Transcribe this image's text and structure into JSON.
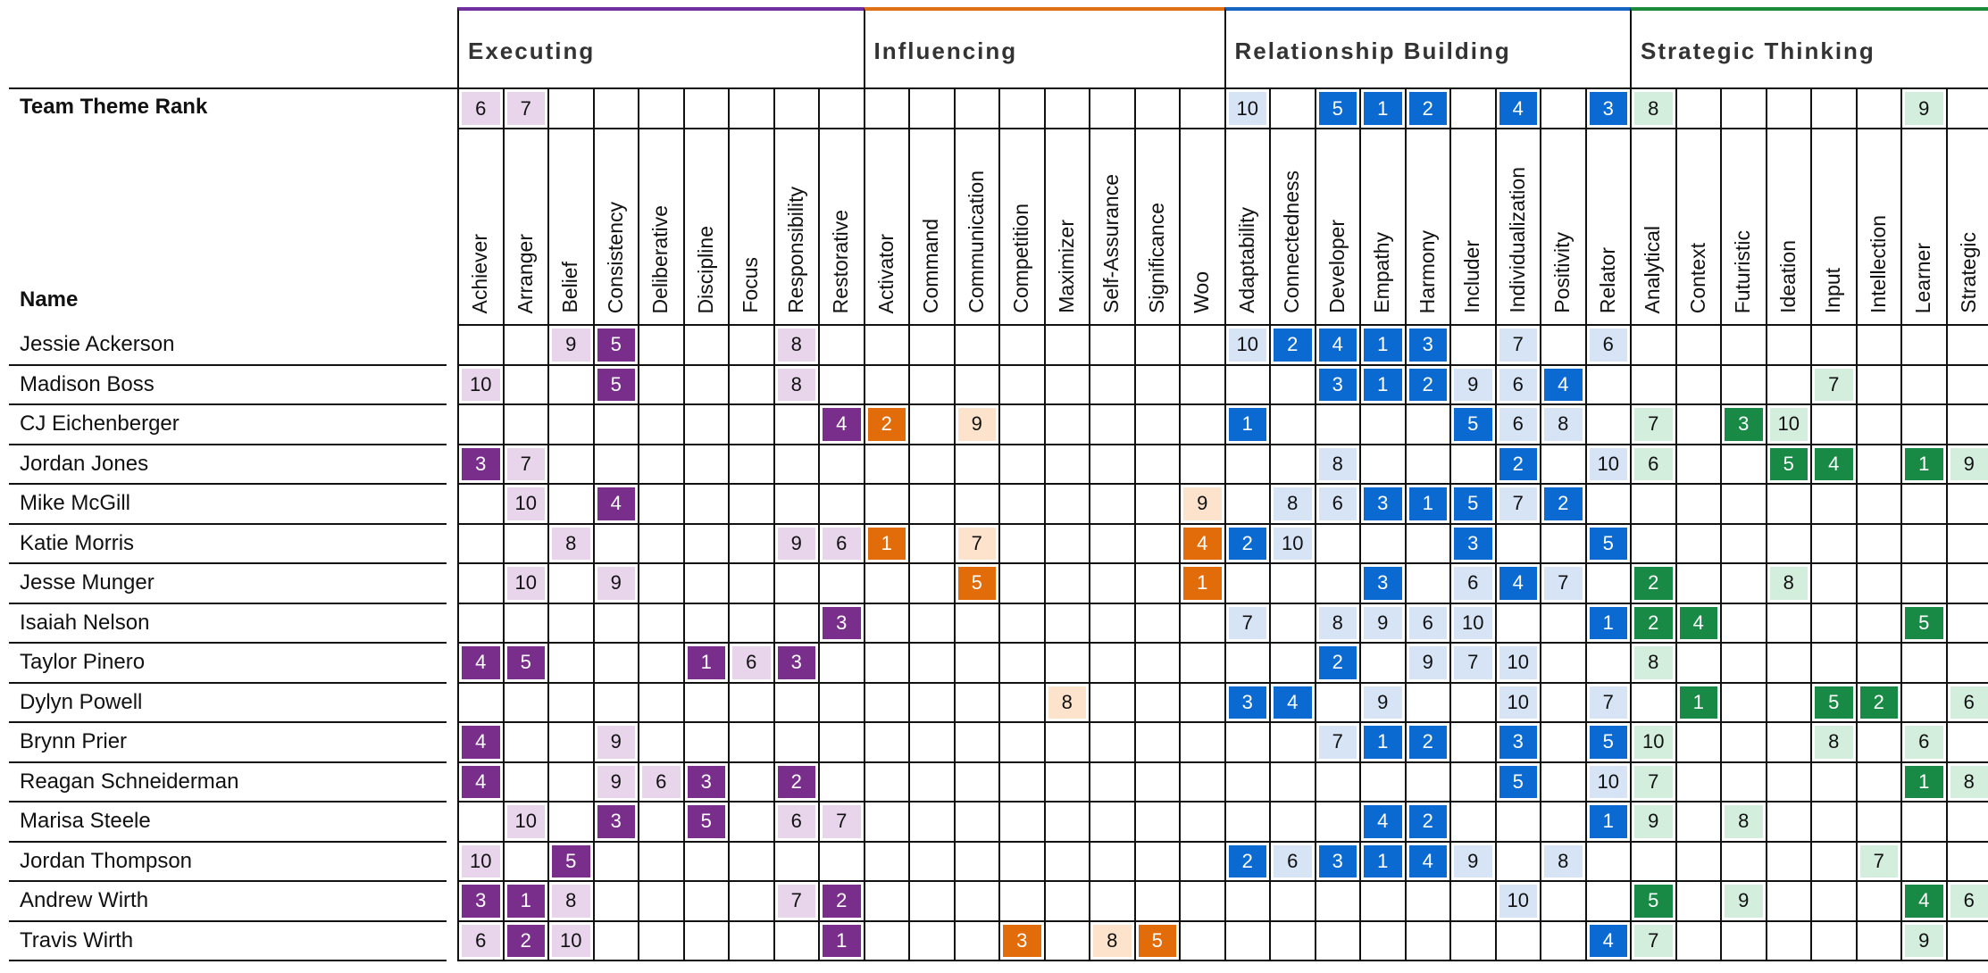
{
  "labels": {
    "team_theme_rank": "Team Theme Rank",
    "name": "Name"
  },
  "domains": [
    {
      "name": "Executing",
      "color": "#7030a0",
      "light": "#e8d5ec",
      "mid": "#7a2e8c",
      "themes": [
        "Achiever",
        "Arranger",
        "Belief",
        "Consistency",
        "Deliberative",
        "Discipline",
        "Focus",
        "Responsibility",
        "Restorative"
      ]
    },
    {
      "name": "Influencing",
      "color": "#e07015",
      "light": "#fde3cb",
      "mid": "#e36c0a",
      "themes": [
        "Activator",
        "Command",
        "Communication",
        "Competition",
        "Maximizer",
        "Self-Assurance",
        "Significance",
        "Woo"
      ]
    },
    {
      "name": "Relationship Building",
      "color": "#1565c0",
      "light": "#d6e4f5",
      "mid": "#0a6ad1",
      "themes": [
        "Adaptability",
        "Connectedness",
        "Developer",
        "Empathy",
        "Harmony",
        "Includer",
        "Individualization",
        "Positivity",
        "Relator"
      ]
    },
    {
      "name": "Strategic Thinking",
      "color": "#1b8a3a",
      "light": "#d4eede",
      "mid": "#198a46",
      "themes": [
        "Analytical",
        "Context",
        "Futuristic",
        "Ideation",
        "Input",
        "Intellection",
        "Learner",
        "Strategic"
      ]
    }
  ],
  "team_rank": [
    "6",
    "7",
    "",
    "",
    "",
    "",
    "",
    "",
    "",
    "",
    "",
    "",
    "",
    "",
    "",
    "",
    "",
    "10",
    "",
    "5",
    "1",
    "2",
    "",
    "4",
    "",
    "3",
    "8",
    "",
    "",
    "",
    "",
    "",
    "9",
    ""
  ],
  "people": [
    {
      "name": "Jessie Ackerson",
      "ranks": [
        "",
        "",
        "9",
        "5",
        "",
        "",
        "",
        "8",
        "",
        "",
        "",
        "",
        "",
        "",
        "",
        "",
        "",
        "10",
        "2",
        "4",
        "1",
        "3",
        "",
        "7",
        "",
        "6",
        "",
        "",
        "",
        "",
        "",
        "",
        "",
        ""
      ]
    },
    {
      "name": "Madison Boss",
      "ranks": [
        "10",
        "",
        "",
        "5",
        "",
        "",
        "",
        "8",
        "",
        "",
        "",
        "",
        "",
        "",
        "",
        "",
        "",
        "",
        "",
        "3",
        "1",
        "2",
        "9",
        "6",
        "4",
        "",
        "",
        "",
        "",
        "",
        "7",
        "",
        "",
        ""
      ]
    },
    {
      "name": "CJ Eichenberger",
      "ranks": [
        "",
        "",
        "",
        "",
        "",
        "",
        "",
        "",
        "4",
        "2",
        "",
        "9",
        "",
        "",
        "",
        "",
        "",
        "1",
        "",
        "",
        "",
        "",
        "5",
        "6",
        "8",
        "",
        "7",
        "",
        "3",
        "10",
        "",
        "",
        "",
        ""
      ]
    },
    {
      "name": "Jordan Jones",
      "ranks": [
        "3",
        "7",
        "",
        "",
        "",
        "",
        "",
        "",
        "",
        "",
        "",
        "",
        "",
        "",
        "",
        "",
        "",
        "",
        "",
        "8",
        "",
        "",
        "",
        "2",
        "",
        "10",
        "6",
        "",
        "",
        "5",
        "4",
        "",
        "1",
        "9"
      ]
    },
    {
      "name": "Mike McGill",
      "ranks": [
        "",
        "10",
        "",
        "4",
        "",
        "",
        "",
        "",
        "",
        "",
        "",
        "",
        "",
        "",
        "",
        "",
        "9",
        "",
        "8",
        "6",
        "3",
        "1",
        "5",
        "7",
        "2",
        "",
        "",
        "",
        "",
        "",
        "",
        "",
        "",
        ""
      ]
    },
    {
      "name": "Katie Morris",
      "ranks": [
        "",
        "",
        "8",
        "",
        "",
        "",
        "",
        "9",
        "6",
        "1",
        "",
        "7",
        "",
        "",
        "",
        "",
        "4",
        "2",
        "10",
        "",
        "",
        "",
        "3",
        "",
        "",
        "5",
        "",
        "",
        "",
        "",
        "",
        "",
        "",
        ""
      ]
    },
    {
      "name": "Jesse Munger",
      "ranks": [
        "",
        "10",
        "",
        "9",
        "",
        "",
        "",
        "",
        "",
        "",
        "",
        "5",
        "",
        "",
        "",
        "",
        "1",
        "",
        "",
        "",
        "3",
        "",
        "6",
        "4",
        "7",
        "",
        "2",
        "",
        "",
        "8",
        "",
        "",
        "",
        ""
      ]
    },
    {
      "name": "Isaiah Nelson",
      "ranks": [
        "",
        "",
        "",
        "",
        "",
        "",
        "",
        "",
        "3",
        "",
        "",
        "",
        "",
        "",
        "",
        "",
        "",
        "7",
        "",
        "8",
        "9",
        "6",
        "10",
        "",
        "",
        "1",
        "2",
        "4",
        "",
        "",
        "",
        "",
        "5",
        ""
      ]
    },
    {
      "name": "Taylor Pinero",
      "ranks": [
        "4",
        "5",
        "",
        "",
        "",
        "1",
        "6",
        "3",
        "",
        "",
        "",
        "",
        "",
        "",
        "",
        "",
        "",
        "",
        "",
        "2",
        "",
        "9",
        "7",
        "10",
        "",
        "",
        "8",
        "",
        "",
        "",
        "",
        "",
        "",
        ""
      ]
    },
    {
      "name": "Dylyn Powell",
      "ranks": [
        "",
        "",
        "",
        "",
        "",
        "",
        "",
        "",
        "",
        "",
        "",
        "",
        "",
        "8",
        "",
        "",
        "",
        "3",
        "4",
        "",
        "9",
        "",
        "",
        "10",
        "",
        "7",
        "",
        "1",
        "",
        "",
        "5",
        "2",
        "",
        "6"
      ]
    },
    {
      "name": "Brynn Prier",
      "ranks": [
        "4",
        "",
        "",
        "9",
        "",
        "",
        "",
        "",
        "",
        "",
        "",
        "",
        "",
        "",
        "",
        "",
        "",
        "",
        "",
        "7",
        "1",
        "2",
        "",
        "3",
        "",
        "5",
        "10",
        "",
        "",
        "",
        "8",
        "",
        "6",
        ""
      ]
    },
    {
      "name": "Reagan Schneiderman",
      "ranks": [
        "4",
        "",
        "",
        "9",
        "6",
        "3",
        "",
        "2",
        "",
        "",
        "",
        "",
        "",
        "",
        "",
        "",
        "",
        "",
        "",
        "",
        "",
        "",
        "",
        "5",
        "",
        "10",
        "7",
        "",
        "",
        "",
        "",
        "",
        "1",
        "8"
      ]
    },
    {
      "name": "Marisa Steele",
      "ranks": [
        "",
        "10",
        "",
        "3",
        "",
        "5",
        "",
        "6",
        "7",
        "",
        "",
        "",
        "",
        "",
        "",
        "",
        "",
        "",
        "",
        "",
        "4",
        "2",
        "",
        "",
        "",
        "1",
        "9",
        "",
        "8",
        "",
        "",
        "",
        "",
        ""
      ]
    },
    {
      "name": "Jordan Thompson",
      "ranks": [
        "10",
        "",
        "5",
        "",
        "",
        "",
        "",
        "",
        "",
        "",
        "",
        "",
        "",
        "",
        "",
        "",
        "",
        "2",
        "6",
        "3",
        "1",
        "4",
        "9",
        "",
        "8",
        "",
        "",
        "",
        "",
        "",
        "",
        "7",
        "",
        ""
      ]
    },
    {
      "name": "Andrew Wirth",
      "ranks": [
        "3",
        "1",
        "8",
        "",
        "",
        "",
        "",
        "7",
        "2",
        "",
        "",
        "",
        "",
        "",
        "",
        "",
        "",
        "",
        "",
        "",
        "",
        "",
        "",
        "10",
        "",
        "",
        "5",
        "",
        "9",
        "",
        "",
        "",
        "4",
        "6"
      ]
    },
    {
      "name": "Travis Wirth",
      "ranks": [
        "6",
        "2",
        "10",
        "",
        "",
        "",
        "",
        "",
        "1",
        "",
        "",
        "",
        "3",
        "",
        "8",
        "5",
        "",
        "",
        "",
        "",
        "",
        "",
        "",
        "",
        "",
        "4",
        "7",
        "",
        "",
        "",
        "",
        "",
        "9",
        ""
      ]
    }
  ]
}
